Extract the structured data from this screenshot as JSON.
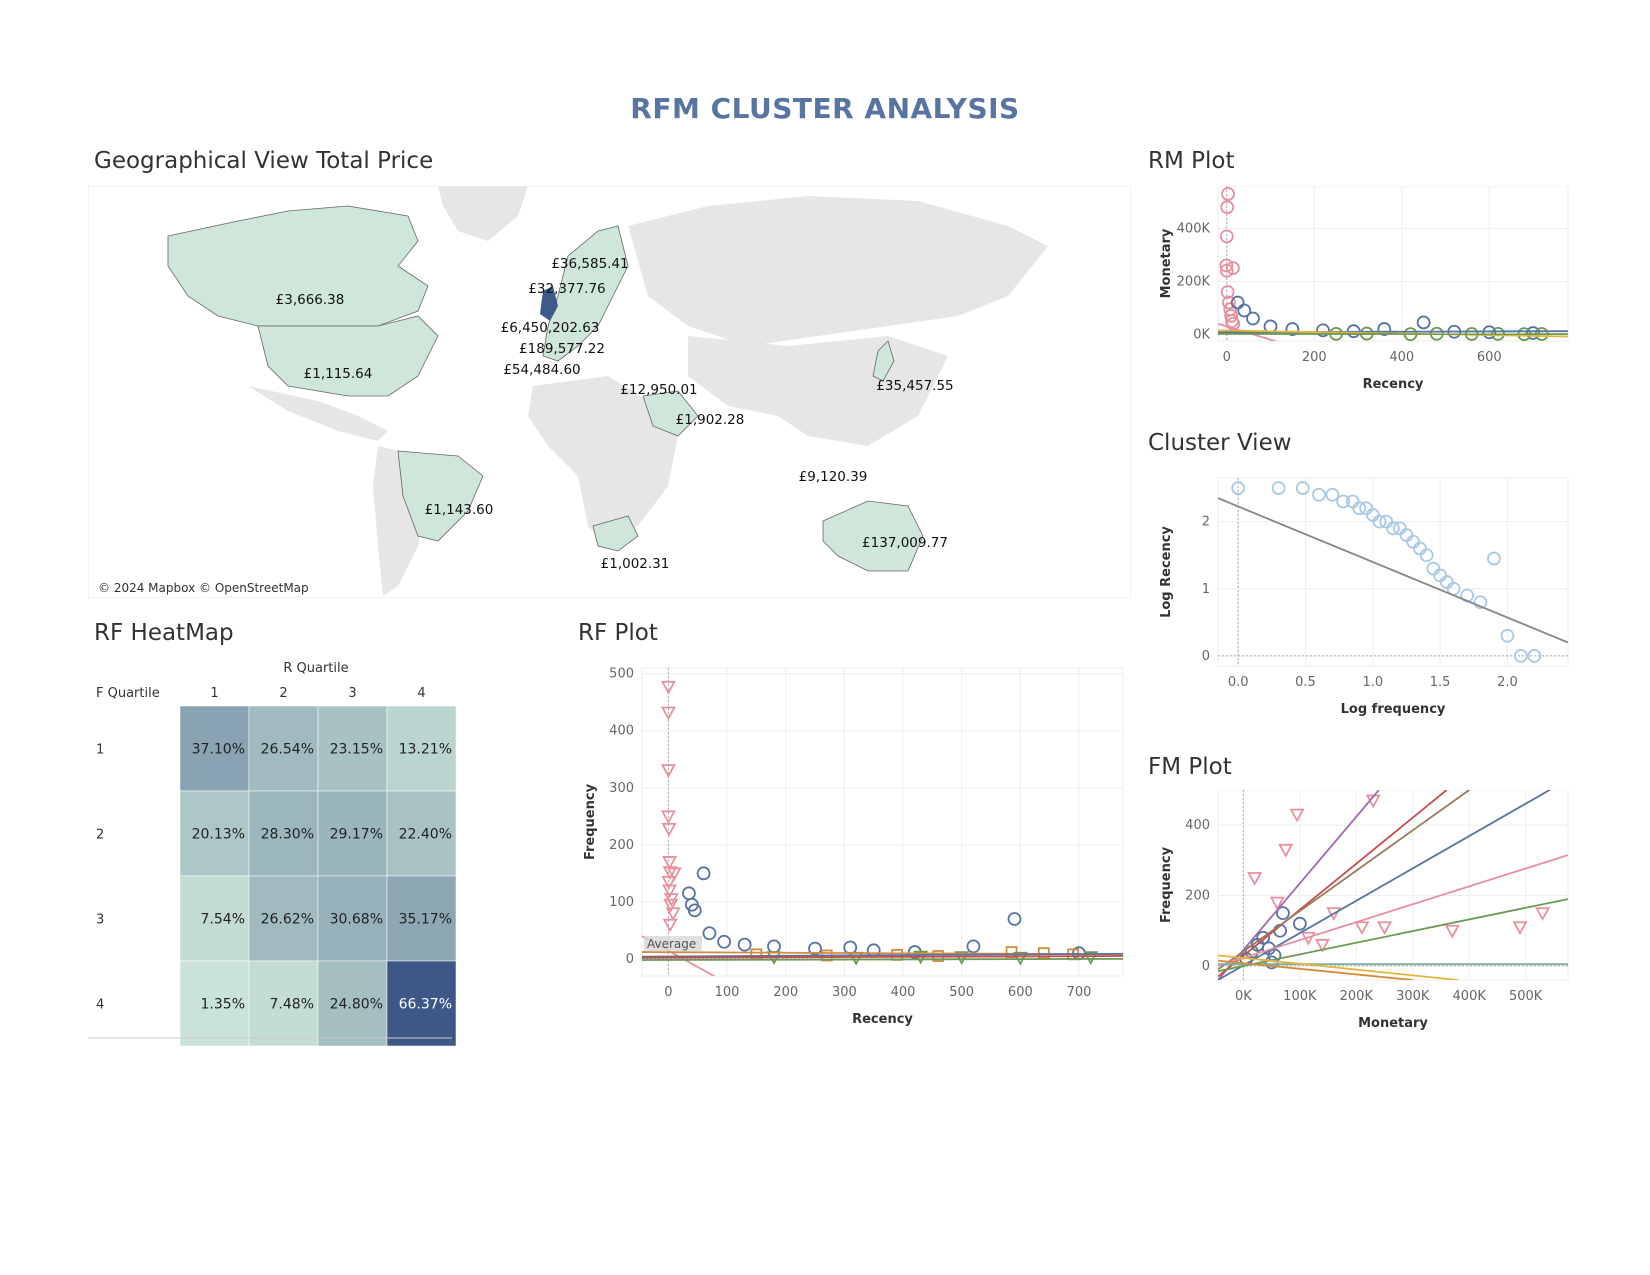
{
  "dashboard": {
    "title": "RFM CLUSTER ANALYSIS"
  },
  "map": {
    "title": "Geographical View Total Price",
    "attribution": "© 2024 Mapbox © OpenStreetMap",
    "labels": [
      {
        "country": "Norway",
        "value": "£36,585.41"
      },
      {
        "country": "Sweden",
        "value": "£32,377.76"
      },
      {
        "country": "Canada",
        "value": "£3,666.38"
      },
      {
        "country": "United Kingdom",
        "value": "£6,450,202.63"
      },
      {
        "country": "Belgium/Netherlands",
        "value": "£189,577.22"
      },
      {
        "country": "Spain/Portugal",
        "value": "£54,484.60"
      },
      {
        "country": "United States",
        "value": "£1,115.64"
      },
      {
        "country": "Greece",
        "value": "£12,950.01"
      },
      {
        "country": "Japan",
        "value": "£35,457.55"
      },
      {
        "country": "Saudi Arabia",
        "value": "£1,902.28"
      },
      {
        "country": "Singapore",
        "value": "£9,120.39"
      },
      {
        "country": "Brazil",
        "value": "£1,143.60"
      },
      {
        "country": "Australia",
        "value": "£137,009.77"
      },
      {
        "country": "South Africa",
        "value": "£1,002.31"
      }
    ],
    "colors": {
      "highlight": "#cfe6da",
      "ocean": "#ffffff",
      "land": "#e6e6e6",
      "uk": "#3e5a8a"
    }
  },
  "heatmap": {
    "title": "RF HeatMap",
    "col_header": "R Quartile",
    "row_header": "F Quartile",
    "cols": [
      "1",
      "2",
      "3",
      "4"
    ],
    "rows": [
      {
        "label": "1",
        "cells": [
          "37.10%",
          "26.54%",
          "23.15%",
          "13.21%"
        ]
      },
      {
        "label": "2",
        "cells": [
          "20.13%",
          "28.30%",
          "29.17%",
          "22.40%"
        ]
      },
      {
        "label": "3",
        "cells": [
          "7.54%",
          "26.62%",
          "30.68%",
          "35.17%"
        ]
      },
      {
        "label": "4",
        "cells": [
          "1.35%",
          "7.48%",
          "24.80%",
          "66.37%"
        ]
      }
    ],
    "colors": {
      "low": "#c9e3d8",
      "high": "#3d5787"
    }
  },
  "chart_data": [
    {
      "id": "rf-plot",
      "type": "scatter",
      "title": "RF Plot",
      "xlabel": "Recency",
      "ylabel": "Frequency",
      "xlim": [
        -45,
        775
      ],
      "ylim": [
        -30,
        510
      ],
      "xticks": [
        0,
        100,
        200,
        300,
        400,
        500,
        600,
        700
      ],
      "yticks": [
        0,
        100,
        200,
        300,
        400,
        500
      ],
      "reference_label": "Average",
      "series": [
        {
          "color": "#e8909e",
          "marker": "triangle",
          "x": [
            0,
            0,
            0,
            0,
            1,
            2,
            3,
            1,
            2,
            5,
            4,
            8,
            10,
            3
          ],
          "y": [
            477,
            432,
            331,
            250,
            228,
            170,
            152,
            135,
            120,
            105,
            95,
            80,
            150,
            60
          ]
        },
        {
          "color": "#5874a3",
          "marker": "circle",
          "x": [
            60,
            35,
            40,
            45,
            70,
            95,
            130,
            180,
            250,
            310,
            350,
            420,
            520,
            590,
            700
          ],
          "y": [
            150,
            115,
            95,
            85,
            45,
            30,
            25,
            22,
            18,
            20,
            15,
            12,
            22,
            70,
            10
          ]
        },
        {
          "color": "#d48c3c",
          "marker": "square",
          "x": [
            150,
            270,
            390,
            460,
            585,
            640,
            690
          ],
          "y": [
            8,
            6,
            7,
            5,
            12,
            10,
            8
          ]
        },
        {
          "color": "#6a9a4f",
          "marker": "triangle",
          "x": [
            180,
            320,
            430,
            500,
            600,
            720
          ],
          "y": [
            3,
            2,
            4,
            3,
            2,
            3
          ]
        }
      ],
      "trend_lines": [
        {
          "color": "#e8909e",
          "x": [
            -45,
            95
          ],
          "y": [
            40,
            -40
          ]
        },
        {
          "color": "#d48c3c",
          "x": [
            -45,
            775
          ],
          "y": [
            12,
            8
          ]
        },
        {
          "color": "#5874a3",
          "x": [
            -45,
            775
          ],
          "y": [
            4,
            9
          ]
        },
        {
          "color": "#c84c4c",
          "x": [
            -45,
            775
          ],
          "y": [
            2,
            5
          ]
        },
        {
          "color": "#6a9a4f",
          "x": [
            -45,
            775
          ],
          "y": [
            -2,
            0
          ]
        }
      ]
    },
    {
      "id": "rm-plot",
      "type": "scatter",
      "title": "RM Plot",
      "xlabel": "Recency",
      "ylabel": "Monetary",
      "xlim": [
        -20,
        780
      ],
      "ylim": [
        -25000,
        560000
      ],
      "xticks": [
        0,
        200,
        400,
        600
      ],
      "yticks": [
        0,
        200000,
        400000
      ],
      "ytick_labels": [
        "0K",
        "200K",
        "400K"
      ],
      "series": [
        {
          "color": "#e8909e",
          "marker": "circle",
          "x": [
            3,
            1,
            0,
            -1,
            0,
            14,
            2,
            5,
            8,
            10,
            12,
            15
          ],
          "y": [
            530000,
            480000,
            370000,
            260000,
            240000,
            250000,
            160000,
            120000,
            95000,
            70000,
            50000,
            40000
          ]
        },
        {
          "color": "#5874a3",
          "marker": "circle",
          "x": [
            25,
            40,
            60,
            100,
            150,
            220,
            290,
            360,
            450,
            520,
            600,
            700
          ],
          "y": [
            120000,
            90000,
            60000,
            30000,
            20000,
            15000,
            12000,
            20000,
            45000,
            10000,
            8000,
            5000
          ]
        },
        {
          "color": "#6a9a4f",
          "marker": "circle",
          "x": [
            250,
            320,
            420,
            480,
            560,
            620,
            680,
            720
          ],
          "y": [
            2000,
            3000,
            1000,
            2500,
            1500,
            2000,
            1000,
            1500
          ]
        }
      ],
      "trend_lines": [
        {
          "color": "#e8909e",
          "x": [
            -20,
            120
          ],
          "y": [
            40000,
            -30000
          ]
        },
        {
          "color": "#5874a3",
          "x": [
            -20,
            780
          ],
          "y": [
            8000,
            12000
          ]
        },
        {
          "color": "#e3b53c",
          "x": [
            -20,
            780
          ],
          "y": [
            15000,
            -8000
          ]
        },
        {
          "color": "#6a9a4f",
          "x": [
            -20,
            780
          ],
          "y": [
            2000,
            1000
          ]
        }
      ]
    },
    {
      "id": "cluster-view",
      "type": "scatter",
      "title": "Cluster View",
      "xlabel": "Log frequency",
      "ylabel": "Log Recency",
      "xlim": [
        -0.15,
        2.45
      ],
      "ylim": [
        -0.15,
        2.65
      ],
      "xticks": [
        0,
        0.5,
        1,
        1.5,
        2
      ],
      "xtick_labels": [
        "0.0",
        "0.5",
        "1.0",
        "1.5",
        "2.0"
      ],
      "yticks": [
        0,
        1,
        2
      ],
      "series": [
        {
          "color": "#a9c9e6",
          "marker": "circle",
          "x": [
            0,
            0.3,
            0.48,
            0.6,
            0.7,
            0.78,
            0.85,
            0.9,
            0.95,
            1.0,
            1.05,
            1.1,
            1.15,
            1.2,
            1.25,
            1.3,
            1.35,
            1.4,
            1.45,
            1.5,
            1.55,
            1.6,
            1.7,
            1.8,
            1.9,
            2.0,
            2.1,
            2.2
          ],
          "y": [
            2.5,
            2.5,
            2.5,
            2.4,
            2.4,
            2.3,
            2.3,
            2.2,
            2.2,
            2.1,
            2.0,
            2.0,
            1.9,
            1.9,
            1.8,
            1.7,
            1.6,
            1.5,
            1.3,
            1.2,
            1.1,
            1.0,
            0.9,
            0.8,
            1.45,
            0.3,
            0.0,
            0.0
          ]
        }
      ],
      "trend_lines": [
        {
          "color": "#888888",
          "x": [
            -0.15,
            2.45
          ],
          "y": [
            2.35,
            0.2
          ]
        }
      ]
    },
    {
      "id": "fm-plot",
      "type": "scatter",
      "title": "FM Plot",
      "xlabel": "Monetary",
      "ylabel": "Frequency",
      "xlim": [
        -45000,
        575000
      ],
      "ylim": [
        -40,
        500
      ],
      "xticks": [
        0,
        100000,
        200000,
        300000,
        400000,
        500000
      ],
      "xtick_labels": [
        "0K",
        "100K",
        "200K",
        "300K",
        "400K",
        "500K"
      ],
      "yticks": [
        0,
        200,
        400
      ],
      "series": [
        {
          "color": "#e8909e",
          "marker": "triangle",
          "x": [
            95000,
            230000,
            75000,
            20000,
            60000,
            160000,
            250000,
            370000,
            490000,
            530000,
            115000,
            140000,
            210000
          ],
          "y": [
            430,
            470,
            330,
            250,
            180,
            150,
            110,
            100,
            110,
            150,
            80,
            60,
            110
          ]
        },
        {
          "color": "#5874a3",
          "marker": "circle",
          "x": [
            5000,
            15000,
            25000,
            35000,
            45000,
            55000,
            65000,
            70000,
            100000,
            50000
          ],
          "y": [
            20,
            40,
            60,
            80,
            50,
            30,
            100,
            150,
            120,
            10
          ]
        }
      ],
      "trend_lines": [
        {
          "color": "#a06ab0",
          "x": [
            -45000,
            240000
          ],
          "y": [
            -40,
            500
          ]
        },
        {
          "color": "#c84c4c",
          "x": [
            -45000,
            360000
          ],
          "y": [
            -30,
            500
          ]
        },
        {
          "color": "#9a7a5a",
          "x": [
            -45000,
            400000
          ],
          "y": [
            -10,
            500
          ]
        },
        {
          "color": "#5874a3",
          "x": [
            -45000,
            575000
          ],
          "y": [
            -40,
            530
          ]
        },
        {
          "color": "#e8909e",
          "x": [
            -45000,
            575000
          ],
          "y": [
            0,
            315
          ]
        },
        {
          "color": "#6a9a4f",
          "x": [
            -45000,
            575000
          ],
          "y": [
            -15,
            190
          ]
        },
        {
          "color": "#7ab0a6",
          "x": [
            -45000,
            575000
          ],
          "y": [
            5,
            5
          ]
        },
        {
          "color": "#e3b53c",
          "x": [
            -45000,
            380000
          ],
          "y": [
            30,
            -40
          ]
        },
        {
          "color": "#d48c3c",
          "x": [
            -45000,
            300000
          ],
          "y": [
            15,
            -40
          ]
        }
      ]
    }
  ]
}
